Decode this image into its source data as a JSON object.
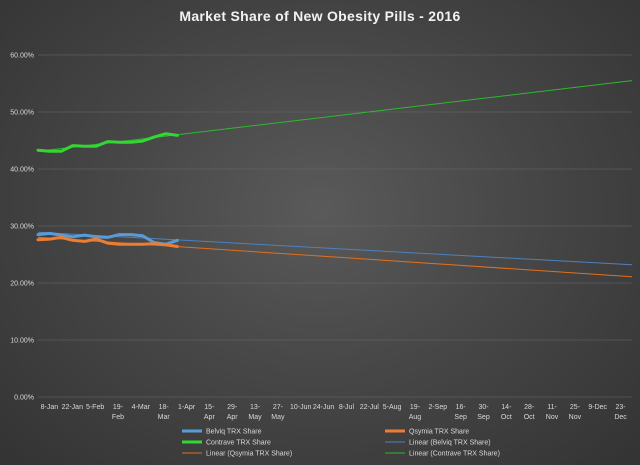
{
  "chart_data": {
    "type": "line",
    "title": "Market Share of New Obesity  Pills - 2016",
    "ylim": [
      0,
      0.6
    ],
    "y_ticks": [
      {
        "value": 0.0,
        "label": "0.00%"
      },
      {
        "value": 0.1,
        "label": "10.00%"
      },
      {
        "value": 0.2,
        "label": "20.00%"
      },
      {
        "value": 0.3,
        "label": "30.00%"
      },
      {
        "value": 0.4,
        "label": "40.00%"
      },
      {
        "value": 0.5,
        "label": "50.00%"
      },
      {
        "value": 0.6,
        "label": "60.00%"
      }
    ],
    "x_ticks": [
      [
        "8-Jan"
      ],
      [
        "22-Jan"
      ],
      [
        "5-Feb"
      ],
      [
        "19-",
        "Feb"
      ],
      [
        "4-Mar"
      ],
      [
        "18-",
        "Mar"
      ],
      [
        "1-Apr"
      ],
      [
        "15-",
        "Apr"
      ],
      [
        "29-",
        "Apr"
      ],
      [
        "13-",
        "May"
      ],
      [
        "27-",
        "May"
      ],
      [
        "10-Jun"
      ],
      [
        "24-Jun"
      ],
      [
        "8-Jul"
      ],
      [
        "22-Jul"
      ],
      [
        "5-Aug"
      ],
      [
        "19-",
        "Aug"
      ],
      [
        "2-Sep"
      ],
      [
        "16-",
        "Sep"
      ],
      [
        "30-",
        "Sep"
      ],
      [
        "14-",
        "Oct"
      ],
      [
        "28-",
        "Oct"
      ],
      [
        "11-",
        "Nov"
      ],
      [
        "25-",
        "Nov"
      ],
      [
        "9-Dec"
      ],
      [
        "23-",
        "Dec"
      ]
    ],
    "series": [
      {
        "name": "Belviq TRX Share",
        "color": "#5b9bd5",
        "x": [
          "2016-01-08",
          "2016-01-15",
          "2016-01-22",
          "2016-01-29",
          "2016-02-05",
          "2016-02-12",
          "2016-02-19",
          "2016-02-26",
          "2016-03-04",
          "2016-03-11",
          "2016-03-18",
          "2016-03-25",
          "2016-04-01"
        ],
        "values": [
          0.285,
          0.287,
          0.284,
          0.281,
          0.284,
          0.281,
          0.28,
          0.285,
          0.285,
          0.283,
          0.271,
          0.268,
          0.275
        ]
      },
      {
        "name": "Qsymia TRX Share",
        "color": "#ed7d31",
        "x": [
          "2016-01-08",
          "2016-01-15",
          "2016-01-22",
          "2016-01-29",
          "2016-02-05",
          "2016-02-12",
          "2016-02-19",
          "2016-02-26",
          "2016-03-04",
          "2016-03-11",
          "2016-03-18",
          "2016-03-25",
          "2016-04-01"
        ],
        "values": [
          0.276,
          0.277,
          0.28,
          0.275,
          0.273,
          0.277,
          0.27,
          0.268,
          0.268,
          0.268,
          0.269,
          0.267,
          0.264
        ]
      },
      {
        "name": "Contrave TRX Share",
        "color": "#33d633",
        "x": [
          "2016-01-08",
          "2016-01-15",
          "2016-01-22",
          "2016-01-29",
          "2016-02-05",
          "2016-02-12",
          "2016-02-19",
          "2016-02-26",
          "2016-03-04",
          "2016-03-11",
          "2016-03-18",
          "2016-03-25",
          "2016-04-01"
        ],
        "values": [
          0.433,
          0.431,
          0.431,
          0.441,
          0.44,
          0.44,
          0.448,
          0.447,
          0.447,
          0.449,
          0.456,
          0.462,
          0.459
        ]
      }
    ],
    "trendlines": [
      {
        "name": "Linear (Belviq TRX Share)",
        "color": "#4f81bd",
        "x": [
          "2016-01-08",
          "2016-12-31"
        ],
        "values": [
          0.289,
          0.232
        ]
      },
      {
        "name": "Linear (Qsymia TRX Share)",
        "color": "#e07020",
        "x": [
          "2016-01-08",
          "2016-12-31"
        ],
        "values": [
          0.28,
          0.211
        ]
      },
      {
        "name": "Linear (Contrave TRX Share)",
        "color": "#2fb82f",
        "x": [
          "2016-01-08",
          "2016-12-31"
        ],
        "values": [
          0.431,
          0.555
        ]
      }
    ],
    "legend": [
      {
        "label": "Belviq TRX Share",
        "color": "#5b9bd5",
        "thick": true
      },
      {
        "label": "Qsymia TRX Share",
        "color": "#ed7d31",
        "thick": true
      },
      {
        "label": "Contrave TRX Share",
        "color": "#33d633",
        "thick": true
      },
      {
        "label": "Linear (Belviq TRX Share)",
        "color": "#4f81bd",
        "thick": false
      },
      {
        "label": "Linear (Qsymia TRX Share)",
        "color": "#e07020",
        "thick": false
      },
      {
        "label": "Linear (Contrave TRX Share)",
        "color": "#2fb82f",
        "thick": false
      }
    ],
    "legend_position": "bottom",
    "grid": true
  }
}
